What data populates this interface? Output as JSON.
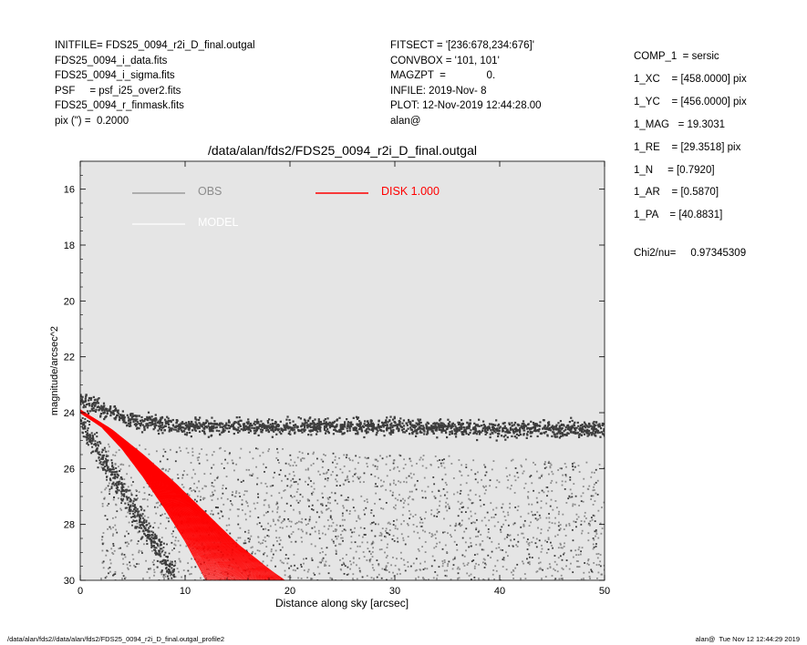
{
  "header": {
    "left_lines": [
      "INITFILE= FDS25_0094_r2i_D_final.outgal",
      "FDS25_0094_i_data.fits",
      "FDS25_0094_i_sigma.fits",
      "PSF     = psf_i25_over2.fits",
      "FDS25_0094_r_finmask.fits",
      "pix (\") =  0.2000"
    ],
    "middle_lines": [
      "FITSECT = '[236:678,234:676]'",
      "CONVBOX = '101, 101'",
      "MAGZPT  =              0.",
      "INFILE: 2019-Nov- 8",
      "PLOT: 12-Nov-2019 12:44:28.00",
      "alan@"
    ],
    "right_lines": [
      "COMP_1  = sersic",
      "1_XC    = [458.0000] pix",
      "1_YC    = [456.0000] pix",
      "1_MAG   = 19.3031",
      "1_RE    = [29.3518] pix",
      "1_N     = [0.7920]",
      "1_AR    = [0.5870]",
      "1_PA    = [40.8831]"
    ],
    "chi2": "Chi2/nu=     0.97345309"
  },
  "footer": {
    "left": "/data/alan/fds2//data/alan/fds2/FDS25_0094_r2i_D_final.outgal_profile2",
    "right": "alan@  Tue Nov 12 12:44:29 2019"
  },
  "colors": {
    "plot_bg": "#e5e5e5",
    "obs": "#8c8c8c",
    "obs_dark": "#3c3c3c",
    "model": "#ffffff",
    "disk": "#ff0000"
  },
  "chart_data": {
    "type": "scatter",
    "title": "/data/alan/fds2/FDS25_0094_r2i_D_final.outgal",
    "xlabel": "Distance along sky [arcsec]",
    "ylabel": "magnitude/arcsec^2",
    "xlim": [
      0,
      50
    ],
    "ylim": [
      30,
      15
    ],
    "y_inverted": true,
    "x_ticks": [
      0,
      10,
      20,
      30,
      40,
      50
    ],
    "y_ticks": [
      16,
      18,
      20,
      22,
      24,
      26,
      28,
      30
    ],
    "legend": [
      {
        "label": "OBS",
        "color": "#8c8c8c",
        "placement": "top-left"
      },
      {
        "label": "MODEL",
        "color": "#ffffff",
        "placement": "top-left"
      },
      {
        "label": "DISK  1.000",
        "color": "#ff0000",
        "placement": "top-center"
      }
    ],
    "series": [
      {
        "kind": "observed sky-level band",
        "x": [
          0,
          1,
          3,
          5,
          10,
          20,
          30,
          40,
          50
        ],
        "y": [
          23.6,
          23.7,
          24.0,
          24.3,
          24.5,
          24.5,
          24.5,
          24.6,
          24.6
        ]
      },
      {
        "kind": "observed scatter envelope (upper)",
        "x": [
          0,
          10,
          20,
          30,
          40,
          50
        ],
        "y": [
          25.0,
          25.2,
          25.3,
          25.5,
          25.6,
          25.8
        ]
      },
      {
        "kind": "disk model upper edge",
        "x": [
          0,
          2,
          4,
          6,
          8,
          10,
          11,
          12
        ],
        "y": [
          24.0,
          24.5,
          25.3,
          26.3,
          27.4,
          28.6,
          29.3,
          30.0
        ]
      },
      {
        "kind": "disk model lower edge",
        "x": [
          0,
          3,
          6,
          9,
          12,
          15,
          18,
          19.5
        ],
        "y": [
          23.9,
          24.6,
          25.5,
          26.5,
          27.6,
          28.7,
          29.6,
          30.0
        ]
      }
    ]
  }
}
